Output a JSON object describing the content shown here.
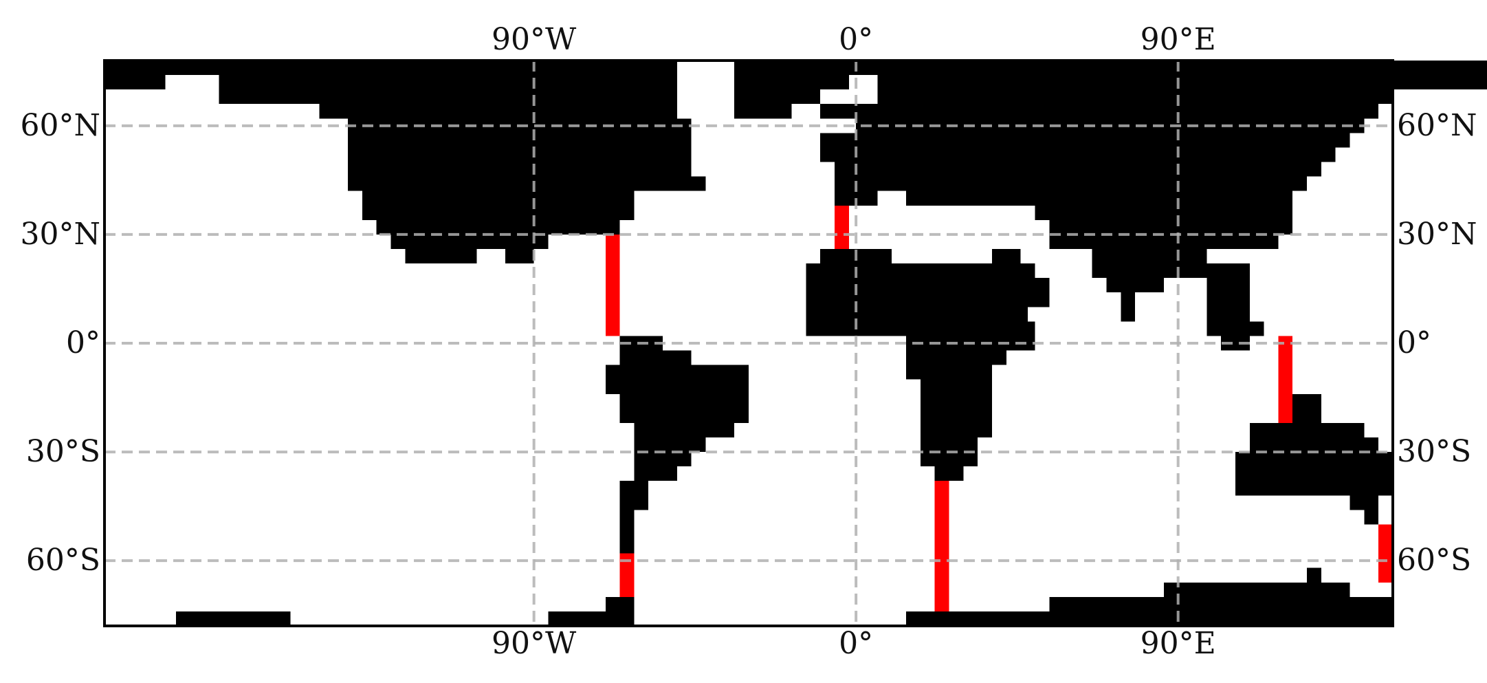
{
  "map": {
    "projection": "equirectangular",
    "lon_range": [
      -210,
      150
    ],
    "lat_range": [
      -78,
      78
    ],
    "gridlines": true,
    "grid_style": "dashed",
    "grid_color": "#b0b0b0",
    "land_color": "#000000",
    "ocean_color": "#ffffff",
    "barrier_color": "#ff0000",
    "lon_ticks": [
      {
        "value": -90,
        "label": "90°W"
      },
      {
        "value": 0,
        "label": "0°"
      },
      {
        "value": 90,
        "label": "90°E"
      }
    ],
    "lat_ticks": [
      {
        "value": 60,
        "label": "60°N"
      },
      {
        "value": 30,
        "label": "30°N"
      },
      {
        "value": 0,
        "label": "0°"
      },
      {
        "value": -30,
        "label": "30°S"
      },
      {
        "value": -60,
        "label": "60°S"
      }
    ],
    "land_rects": [
      [
        -210,
        78,
        -193,
        70
      ],
      [
        -193,
        78,
        -178,
        74
      ],
      [
        -178,
        78,
        -162,
        70
      ],
      [
        -178,
        70,
        -150,
        66
      ],
      [
        -162,
        70,
        -150,
        66
      ],
      [
        -137,
        70,
        -122,
        66
      ],
      [
        -178,
        74,
        -162,
        70
      ],
      [
        -162,
        78,
        -50,
        70
      ],
      [
        -150,
        70,
        -50,
        62
      ],
      [
        -122,
        70,
        -50,
        66
      ],
      [
        -142,
        66,
        -50,
        62
      ],
      [
        -142,
        62,
        -46,
        46
      ],
      [
        -142,
        46,
        -46,
        42
      ],
      [
        -142,
        46,
        -42,
        42
      ],
      [
        -138,
        42,
        -62,
        34
      ],
      [
        -134,
        34,
        -66,
        30
      ],
      [
        -130,
        30,
        -66,
        30
      ],
      [
        -130,
        30,
        -98,
        26
      ],
      [
        -94,
        30,
        -86,
        30
      ],
      [
        -126,
        26,
        -86,
        30
      ],
      [
        -98,
        30,
        -86,
        30
      ],
      [
        -98,
        26,
        -86,
        30
      ],
      [
        -126,
        30,
        -86,
        26
      ],
      [
        -122,
        26,
        -90,
        26
      ],
      [
        -126,
        26,
        -106,
        22
      ],
      [
        -94,
        26,
        -94,
        26
      ],
      [
        -106,
        30,
        -98,
        26
      ],
      [
        -98,
        30,
        -90,
        30
      ],
      [
        -94,
        30,
        -90,
        26
      ],
      [
        -94,
        26,
        -90,
        26
      ],
      [
        -98,
        26,
        -90,
        22
      ],
      [
        -94,
        26,
        -90,
        22
      ],
      [
        -34,
        78,
        -18,
        62
      ],
      [
        -18,
        78,
        -2,
        70
      ],
      [
        -18,
        70,
        -10,
        66
      ],
      [
        -34,
        66,
        -26,
        62
      ],
      [
        18,
        78,
        178,
        70
      ],
      [
        -2,
        78,
        18,
        74
      ],
      [
        6,
        74,
        178,
        70
      ],
      [
        6,
        70,
        150,
        66
      ],
      [
        -10,
        66,
        146,
        62
      ],
      [
        0,
        62,
        142,
        58
      ],
      [
        -10,
        58,
        138,
        54
      ],
      [
        -10,
        54,
        134,
        50
      ],
      [
        -6,
        50,
        130,
        46
      ],
      [
        -6,
        46,
        126,
        42
      ],
      [
        -6,
        42,
        6,
        38
      ],
      [
        14,
        42,
        122,
        38
      ],
      [
        50,
        38,
        122,
        34
      ],
      [
        54,
        34,
        122,
        30
      ],
      [
        54,
        30,
        110,
        26
      ],
      [
        110,
        30,
        118,
        26
      ],
      [
        66,
        26,
        90,
        18
      ],
      [
        90,
        26,
        98,
        18
      ],
      [
        70,
        18,
        86,
        14
      ],
      [
        74,
        14,
        78,
        6
      ],
      [
        106,
        22,
        110,
        2
      ],
      [
        110,
        2,
        118,
        2
      ],
      [
        98,
        22,
        106,
        2
      ],
      [
        98,
        6,
        114,
        2
      ],
      [
        102,
        2,
        110,
        -2
      ],
      [
        -10,
        26,
        10,
        22
      ],
      [
        -14,
        22,
        50,
        18
      ],
      [
        -14,
        18,
        50,
        10
      ],
      [
        -14,
        10,
        48,
        2
      ],
      [
        -10,
        6,
        50,
        2
      ],
      [
        -10,
        2,
        48,
        2
      ],
      [
        -14,
        18,
        54,
        14
      ],
      [
        -14,
        14,
        54,
        10
      ],
      [
        38,
        26,
        46,
        22
      ],
      [
        14,
        2,
        50,
        -2
      ],
      [
        14,
        -2,
        42,
        -6
      ],
      [
        14,
        -6,
        38,
        -10
      ],
      [
        18,
        -10,
        38,
        -26
      ],
      [
        18,
        -26,
        34,
        -34
      ],
      [
        22,
        -34,
        30,
        -38
      ],
      [
        -66,
        2,
        -54,
        -2
      ],
      [
        -66,
        -2,
        -46,
        -6
      ],
      [
        -70,
        -6,
        -30,
        -14
      ],
      [
        -66,
        -14,
        -30,
        -22
      ],
      [
        -62,
        -22,
        -34,
        -26
      ],
      [
        -62,
        -26,
        -42,
        -30
      ],
      [
        -62,
        -30,
        -46,
        -34
      ],
      [
        -62,
        -34,
        -50,
        -38
      ],
      [
        -66,
        -38,
        -58,
        -42
      ],
      [
        -66,
        -42,
        -58,
        -46
      ],
      [
        -66,
        -46,
        -62,
        -58
      ],
      [
        -70,
        -70,
        -62,
        -74
      ],
      [
        -86,
        -74,
        -62,
        -78
      ],
      [
        -190,
        -74,
        -158,
        -78
      ],
      [
        14,
        -74,
        54,
        -78
      ],
      [
        54,
        -70,
        86,
        -78
      ],
      [
        86,
        -66,
        106,
        -78
      ],
      [
        106,
        -66,
        138,
        -78
      ],
      [
        138,
        -70,
        150,
        -78
      ],
      [
        126,
        -62,
        130,
        -66
      ],
      [
        122,
        -14,
        130,
        -22
      ],
      [
        110,
        -22,
        142,
        -26
      ],
      [
        110,
        -26,
        146,
        -30
      ],
      [
        114,
        -30,
        150,
        -42
      ],
      [
        106,
        -30,
        150,
        -42
      ],
      [
        138,
        -42,
        146,
        -46
      ],
      [
        142,
        -42,
        146,
        -50
      ]
    ],
    "barrier_rects": [
      [
        -70,
        30,
        -66,
        2
      ],
      [
        -66,
        -58,
        -62,
        -70
      ],
      [
        -6,
        38,
        -2,
        26
      ],
      [
        22,
        -38,
        26,
        -74
      ],
      [
        118,
        2,
        122,
        -22
      ],
      [
        146,
        -50,
        150,
        -66
      ]
    ]
  }
}
